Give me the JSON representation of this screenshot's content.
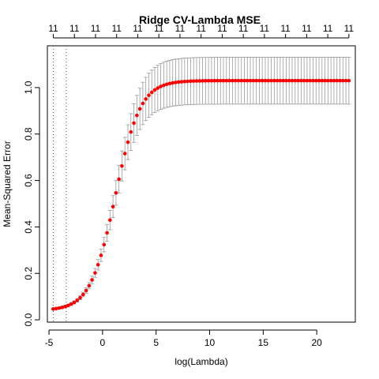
{
  "chart_data": {
    "type": "scatter",
    "title": "Ridge CV-Lambda MSE",
    "xlabel": "log(Lambda)",
    "ylabel": "Mean-Squared Error",
    "xlim": [
      -5.15,
      23.6
    ],
    "ylim": [
      -0.01,
      1.18
    ],
    "xticks": [
      -5,
      0,
      5,
      10,
      15,
      20
    ],
    "yticks": [
      0.0,
      0.2,
      0.4,
      0.6,
      0.8,
      1.0
    ],
    "top_labels": [
      "11",
      "11",
      "11",
      "11",
      "11",
      "11",
      "11",
      "11",
      "11",
      "11",
      "11",
      "11",
      "11",
      "11",
      "11"
    ],
    "vlines": [
      -4.6,
      -3.4
    ],
    "points_x_range": [
      -4.6,
      23.0
    ],
    "n_points": 100,
    "plateau": 1.03,
    "floor": 0.04,
    "midpoint": 1.2,
    "steepness": 0.86,
    "error_band": 0.098,
    "point_color": "#ff0000",
    "errorbar_color": "#999999",
    "grid": false
  }
}
